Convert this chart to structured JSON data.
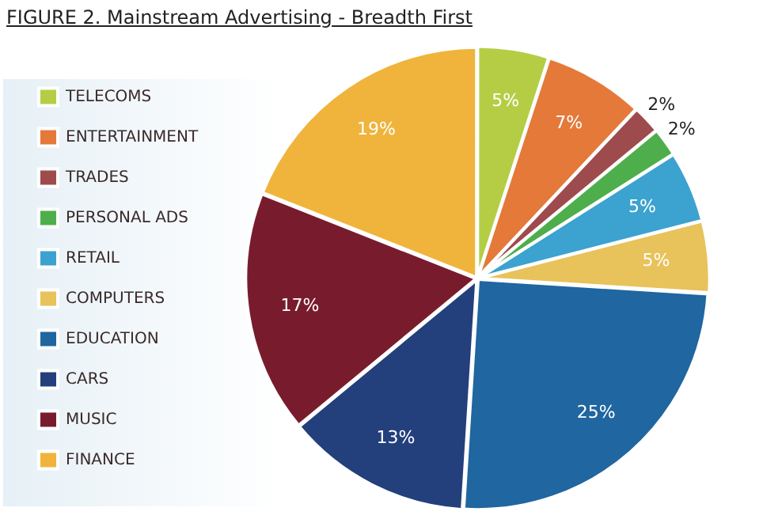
{
  "chart_data": {
    "type": "pie",
    "title": "FIGURE 2. Mainstream Advertising - Breadth First",
    "categories": [
      "TELECOMS",
      "ENTERTAINMENT",
      "TRADES",
      "PERSONAL ADS",
      "RETAIL",
      "COMPUTERS",
      "EDUCATION",
      "CARS",
      "MUSIC",
      "FINANCE"
    ],
    "values": [
      5,
      7,
      2,
      2,
      5,
      5,
      25,
      13,
      17,
      19
    ],
    "value_labels": [
      "5%",
      "7%",
      "2%",
      "2%",
      "5%",
      "5%",
      "25%",
      "13%",
      "17%",
      "19%"
    ],
    "colors": [
      "#b5cd45",
      "#e4793a",
      "#9e4b4e",
      "#4eae4b",
      "#3ca2cf",
      "#e8c25a",
      "#2066a0",
      "#233f7c",
      "#781c2d",
      "#f0b43c"
    ],
    "legend": "left"
  }
}
